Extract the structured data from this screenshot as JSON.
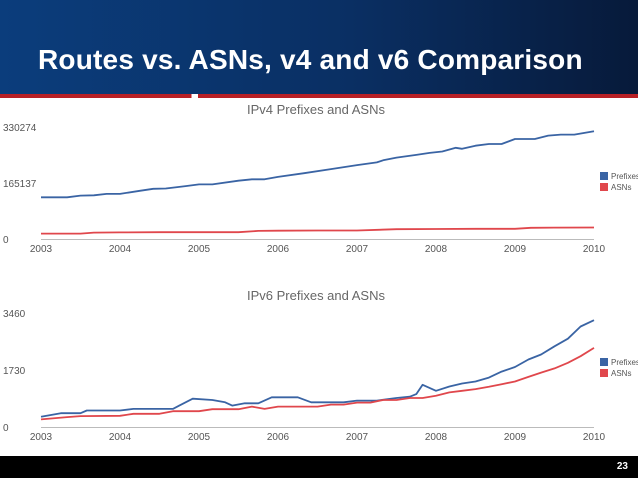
{
  "slide": {
    "title": "Routes vs. ASNs, v4 and v6 Comparison",
    "page_number": "23"
  },
  "colors": {
    "prefixes": "#3a64a4",
    "asns": "#e0474c",
    "header_bg": "#0b3d7c",
    "footer_bg": "#000000"
  },
  "chart_data": [
    {
      "type": "line",
      "title": "IPv4 Prefixes and ASNs",
      "xlabel": "",
      "ylabel": "",
      "x_ticks": [
        "2003",
        "2004",
        "2005",
        "2006",
        "2007",
        "2008",
        "2009",
        "2010"
      ],
      "y_ticks": [
        "0",
        "165137",
        "330274"
      ],
      "xlim": [
        2003,
        2010
      ],
      "ylim": [
        0,
        330274
      ],
      "grid": false,
      "legend": "right",
      "series": [
        {
          "name": "Prefixes",
          "color": "#3a64a4",
          "x": [
            2003.0,
            2003.33,
            2003.5,
            2003.67,
            2003.83,
            2004.0,
            2004.25,
            2004.42,
            2004.58,
            2004.83,
            2005.0,
            2005.17,
            2005.5,
            2005.67,
            2005.83,
            2006.0,
            2006.33,
            2006.67,
            2007.0,
            2007.25,
            2007.33,
            2007.5,
            2007.75,
            2007.92,
            2008.08,
            2008.25,
            2008.33,
            2008.5,
            2008.67,
            2008.83,
            2009.0,
            2009.25,
            2009.42,
            2009.58,
            2009.75,
            2010.0
          ],
          "y": [
            123000,
            123000,
            128000,
            129000,
            133000,
            133000,
            142000,
            148000,
            149000,
            156000,
            161000,
            161000,
            172000,
            176000,
            176000,
            183000,
            194000,
            206000,
            218000,
            226000,
            232000,
            240000,
            248000,
            254000,
            258000,
            269000,
            266000,
            275000,
            280000,
            280000,
            295000,
            295000,
            305000,
            308000,
            308000,
            318000
          ]
        },
        {
          "name": "ASNs",
          "color": "#e0474c",
          "x": [
            2003.0,
            2003.5,
            2003.67,
            2004.0,
            2004.5,
            2005.0,
            2005.5,
            2005.75,
            2006.0,
            2006.5,
            2007.0,
            2007.5,
            2008.0,
            2008.5,
            2009.0,
            2009.2,
            2009.5,
            2010.0
          ],
          "y": [
            16000,
            16000,
            19000,
            19500,
            20000,
            20000,
            20000,
            24000,
            24500,
            25000,
            25000,
            29000,
            29500,
            30000,
            30000,
            33000,
            33500,
            34000
          ]
        }
      ]
    },
    {
      "type": "line",
      "title": "IPv6 Prefixes and ASNs",
      "xlabel": "",
      "ylabel": "",
      "x_ticks": [
        "2003",
        "2004",
        "2005",
        "2006",
        "2007",
        "2008",
        "2009",
        "2010"
      ],
      "y_ticks": [
        "0",
        "1730",
        "3460"
      ],
      "xlim": [
        2003,
        2010
      ],
      "ylim": [
        0,
        3460
      ],
      "grid": false,
      "legend": "right",
      "series": [
        {
          "name": "Prefixes",
          "color": "#3a64a4",
          "x": [
            2003.0,
            2003.25,
            2003.5,
            2003.58,
            2003.75,
            2004.0,
            2004.17,
            2004.5,
            2004.67,
            2004.75,
            2004.92,
            2005.17,
            2005.33,
            2005.42,
            2005.58,
            2005.75,
            2005.92,
            2006.08,
            2006.25,
            2006.42,
            2006.67,
            2006.83,
            2007.0,
            2007.17,
            2007.25,
            2007.5,
            2007.67,
            2007.75,
            2007.83,
            2008.0,
            2008.17,
            2008.33,
            2008.5,
            2008.67,
            2008.83,
            2009.0,
            2009.17,
            2009.33,
            2009.5,
            2009.67,
            2009.83,
            2010.0
          ],
          "y": [
            310,
            420,
            420,
            500,
            500,
            500,
            550,
            550,
            550,
            650,
            860,
            820,
            750,
            650,
            720,
            720,
            900,
            900,
            900,
            750,
            750,
            750,
            800,
            800,
            800,
            880,
            920,
            1000,
            1280,
            1100,
            1230,
            1320,
            1380,
            1500,
            1680,
            1820,
            2050,
            2200,
            2450,
            2680,
            3050,
            3240
          ]
        },
        {
          "name": "ASNs",
          "color": "#e0474c",
          "x": [
            2003.0,
            2003.33,
            2003.5,
            2004.0,
            2004.17,
            2004.5,
            2004.67,
            2005.0,
            2005.17,
            2005.5,
            2005.67,
            2005.83,
            2006.0,
            2006.33,
            2006.5,
            2006.67,
            2006.83,
            2007.0,
            2007.17,
            2007.33,
            2007.5,
            2007.67,
            2007.83,
            2008.0,
            2008.17,
            2008.33,
            2008.5,
            2008.67,
            2008.83,
            2009.0,
            2009.17,
            2009.33,
            2009.5,
            2009.67,
            2009.83,
            2010.0
          ],
          "y": [
            230,
            300,
            330,
            340,
            400,
            400,
            480,
            480,
            540,
            540,
            620,
            550,
            620,
            620,
            620,
            680,
            680,
            740,
            740,
            820,
            820,
            880,
            880,
            950,
            1050,
            1100,
            1150,
            1220,
            1300,
            1380,
            1520,
            1650,
            1780,
            1950,
            2150,
            2400
          ]
        }
      ]
    }
  ]
}
